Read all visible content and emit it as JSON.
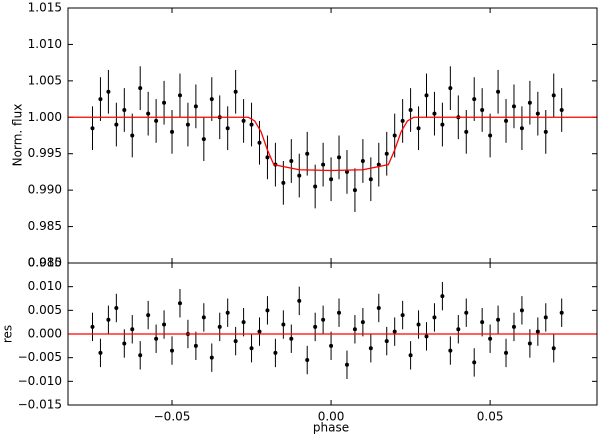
{
  "chart_data": [
    {
      "type": "errorbar",
      "ylabel": "Norm. flux",
      "xlim": [
        -0.0827,
        0.0836
      ],
      "ylim": [
        0.98,
        1.015
      ],
      "yticks": [
        {
          "value": 0.98,
          "label": "0.980"
        },
        {
          "value": 0.985,
          "label": "0.985"
        },
        {
          "value": 0.99,
          "label": "0.990"
        },
        {
          "value": 0.995,
          "label": "0.995"
        },
        {
          "value": 1.0,
          "label": "1.000"
        },
        {
          "value": 1.005,
          "label": "1.005"
        },
        {
          "value": 1.01,
          "label": "1.010"
        },
        {
          "value": 1.015,
          "label": "1.015"
        }
      ],
      "points": {
        "color": "#000000",
        "error": 0.003,
        "x": [
          -0.075,
          -0.0725,
          -0.07,
          -0.0675,
          -0.065,
          -0.0625,
          -0.06,
          -0.0575,
          -0.055,
          -0.0525,
          -0.05,
          -0.0475,
          -0.045,
          -0.0425,
          -0.04,
          -0.0375,
          -0.035,
          -0.0325,
          -0.03,
          -0.0275,
          -0.025,
          -0.0225,
          -0.02,
          -0.0175,
          -0.015,
          -0.0125,
          -0.01,
          -0.0075,
          -0.005,
          -0.0025,
          0,
          0.0025,
          0.005,
          0.0075,
          0.01,
          0.0125,
          0.015,
          0.0175,
          0.02,
          0.0225,
          0.025,
          0.0275,
          0.03,
          0.0325,
          0.035,
          0.0375,
          0.04,
          0.0425,
          0.045,
          0.0475,
          0.05,
          0.0525,
          0.055,
          0.0575,
          0.06,
          0.0625,
          0.065,
          0.0675,
          0.07,
          0.0725
        ],
        "values": [
          0.9985,
          1.0025,
          1.0035,
          0.999,
          1.001,
          0.9975,
          1.004,
          1.0005,
          0.9995,
          1.002,
          0.998,
          1.003,
          0.999,
          1.0015,
          0.997,
          1.0025,
          1.0,
          0.9985,
          1.0035,
          0.9995,
          0.999,
          0.9965,
          0.9945,
          0.9935,
          0.991,
          0.994,
          0.992,
          0.995,
          0.9905,
          0.9935,
          0.9915,
          0.9945,
          0.9925,
          0.99,
          0.994,
          0.9915,
          0.9935,
          0.995,
          0.9975,
          0.9995,
          1.001,
          0.9985,
          1.003,
          1.0005,
          0.999,
          1.004,
          1.0,
          0.998,
          1.0025,
          1.001,
          0.9975,
          1.0035,
          0.9995,
          1.0015,
          0.9985,
          1.002,
          1.0005,
          0.998,
          1.003,
          1.001
        ]
      },
      "model": {
        "color": "#ff0000",
        "x": [
          -0.0827,
          -0.026,
          -0.024,
          -0.022,
          -0.02,
          -0.018,
          -0.01,
          0,
          0.01,
          0.018,
          0.02,
          0.022,
          0.024,
          0.026,
          0.0836
        ],
        "values": [
          1,
          1,
          0.9995,
          0.998,
          0.9955,
          0.9935,
          0.9928,
          0.9927,
          0.9928,
          0.9935,
          0.9955,
          0.998,
          0.9995,
          1,
          1
        ]
      }
    },
    {
      "type": "errorbar",
      "ylabel": "res",
      "xlabel": "phase",
      "xlim": [
        -0.0827,
        0.0836
      ],
      "ylim": [
        -0.015,
        0.015
      ],
      "xticks": [
        {
          "value": -0.05,
          "label": "−0.05"
        },
        {
          "value": 0,
          "label": "0.00"
        },
        {
          "value": 0.05,
          "label": "0.05"
        }
      ],
      "yticks": [
        {
          "value": -0.015,
          "label": "−0.015"
        },
        {
          "value": -0.01,
          "label": "−0.010"
        },
        {
          "value": -0.005,
          "label": "−0.005"
        },
        {
          "value": 0,
          "label": "0.000"
        },
        {
          "value": 0.005,
          "label": "0.005"
        },
        {
          "value": 0.01,
          "label": "0.010"
        },
        {
          "value": 0.015,
          "label": "0.015"
        }
      ],
      "points": {
        "color": "#000000",
        "error": 0.003,
        "x": [
          -0.075,
          -0.0725,
          -0.07,
          -0.0675,
          -0.065,
          -0.0625,
          -0.06,
          -0.0575,
          -0.055,
          -0.0525,
          -0.05,
          -0.0475,
          -0.045,
          -0.0425,
          -0.04,
          -0.0375,
          -0.035,
          -0.0325,
          -0.03,
          -0.0275,
          -0.025,
          -0.0225,
          -0.02,
          -0.0175,
          -0.015,
          -0.0125,
          -0.01,
          -0.0075,
          -0.005,
          -0.0025,
          0,
          0.0025,
          0.005,
          0.0075,
          0.01,
          0.0125,
          0.015,
          0.0175,
          0.02,
          0.0225,
          0.025,
          0.0275,
          0.03,
          0.0325,
          0.035,
          0.0375,
          0.04,
          0.0425,
          0.045,
          0.0475,
          0.05,
          0.0525,
          0.055,
          0.0575,
          0.06,
          0.0625,
          0.065,
          0.0675,
          0.07,
          0.0725
        ],
        "values": [
          0.0015,
          -0.004,
          0.003,
          0.0055,
          -0.002,
          0.001,
          -0.0045,
          0.004,
          -0.001,
          0.002,
          -0.0035,
          0.0065,
          0,
          -0.0025,
          0.0035,
          -0.005,
          0.0015,
          0.0045,
          -0.0015,
          0.0025,
          -0.003,
          0.0005,
          0.005,
          -0.004,
          0.002,
          -0.001,
          0.007,
          -0.0055,
          0.0015,
          0.003,
          -0.0025,
          0.0045,
          -0.0065,
          0.001,
          0.0025,
          -0.003,
          0.0055,
          -0.0015,
          0.0005,
          0.004,
          -0.0045,
          0.002,
          -0.0005,
          0.0035,
          0.008,
          -0.0035,
          0.001,
          0.0045,
          -0.006,
          0.0025,
          -0.001,
          0.003,
          -0.004,
          0.0015,
          0.005,
          -0.002,
          0.0005,
          0.0035,
          -0.003,
          0.0045
        ]
      },
      "model": {
        "color": "#ff0000",
        "x": [
          -0.0827,
          0.0836
        ],
        "values": [
          0,
          0
        ]
      }
    }
  ]
}
